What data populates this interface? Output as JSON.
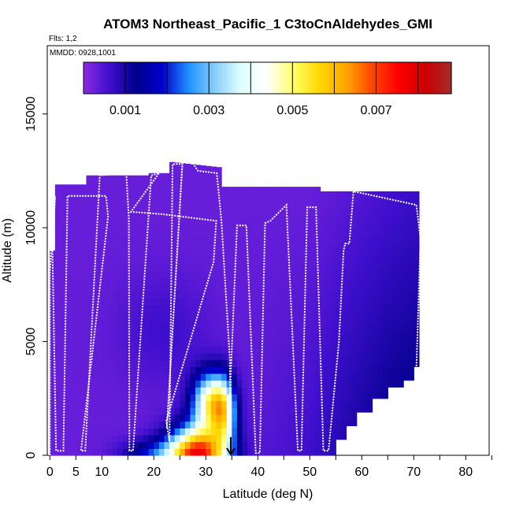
{
  "chart_data": {
    "type": "heatmap",
    "title": "ATOM3 Northeast_Pacific_1 C3toCnAldehydes_GMI",
    "flights_label": "Flts: 1,2",
    "date_label": "MMDD: 0928,1001",
    "xlabel": "Latitude (deg N)",
    "ylabel": "Altitude (m)",
    "xlim": [
      -0.5,
      84.5
    ],
    "ylim": [
      0,
      18000
    ],
    "x_ticks": [
      0,
      5,
      10,
      20,
      30,
      40,
      50,
      60,
      70,
      80
    ],
    "x_ticks_minor": [
      15,
      25,
      35,
      45,
      55,
      65,
      75,
      85
    ],
    "y_ticks": [
      0,
      5000,
      10000,
      15000
    ],
    "colorbar": {
      "range": [
        0,
        0.0088
      ],
      "tick_values": [
        0.001,
        0.003,
        0.005,
        0.007
      ],
      "tick_labels": [
        "0.001",
        "0.003",
        "0.005",
        "0.007"
      ],
      "divisions": [
        0.002,
        0.004,
        0.006,
        0.008
      ],
      "colors": [
        "#8A2BE2",
        "#3F0FCD",
        "#00008B",
        "#0000CD",
        "#1E90FF",
        "#87CEFA",
        "#E0FFFF",
        "#FFFFFF",
        "#FFFF66",
        "#FFD700",
        "#FFA500",
        "#FF4500",
        "#FF0000",
        "#CC0000",
        "#A52A2A"
      ]
    },
    "flight_track": [
      [
        0,
        0
      ],
      [
        0,
        8000
      ],
      [
        1,
        11400
      ],
      [
        0.5,
        9000
      ],
      [
        1.2,
        200
      ],
      [
        2.6,
        200
      ],
      [
        3.4,
        11400
      ],
      [
        10.8,
        11400
      ],
      [
        11.2,
        10500
      ],
      [
        6,
        200
      ],
      [
        6.8,
        200
      ],
      [
        9.6,
        12300
      ],
      [
        14.7,
        12400
      ],
      [
        15.2,
        10400
      ],
      [
        15.3,
        200
      ],
      [
        16,
        200
      ],
      [
        19.5,
        12300
      ],
      [
        21,
        12400
      ],
      [
        15.6,
        10700
      ],
      [
        21.5,
        10600
      ],
      [
        32,
        10300
      ],
      [
        31.5,
        8500
      ],
      [
        22.4,
        1500
      ],
      [
        23,
        600
      ],
      [
        23.6,
        12800
      ],
      [
        25.5,
        12800
      ],
      [
        22.5,
        1200
      ],
      [
        25.5,
        12900
      ],
      [
        27.3,
        12900
      ],
      [
        28.5,
        12500
      ],
      [
        32.1,
        12400
      ],
      [
        33,
        10300
      ],
      [
        34.6,
        4300
      ],
      [
        34.8,
        0
      ],
      [
        34.7,
        3000
      ],
      [
        35.8,
        9000
      ],
      [
        36,
        10100
      ],
      [
        37.8,
        10100
      ],
      [
        39.6,
        100
      ],
      [
        40.4,
        100
      ],
      [
        41.4,
        10200
      ],
      [
        42.4,
        10300
      ],
      [
        45.5,
        11000
      ],
      [
        47.7,
        200
      ],
      [
        48.4,
        200
      ],
      [
        49.5,
        10900
      ],
      [
        51.2,
        10900
      ],
      [
        52.6,
        200
      ],
      [
        53.6,
        200
      ],
      [
        55.6,
        5000
      ],
      [
        56.5,
        9000
      ],
      [
        56.8,
        9300
      ],
      [
        57.6,
        9300
      ],
      [
        58.4,
        11600
      ],
      [
        70.5,
        11000
      ],
      [
        71.3,
        9500
      ],
      [
        70.5,
        3800
      ]
    ],
    "highlight_marker": {
      "lat": 34.8,
      "alt": 0,
      "label": "arrow"
    }
  }
}
